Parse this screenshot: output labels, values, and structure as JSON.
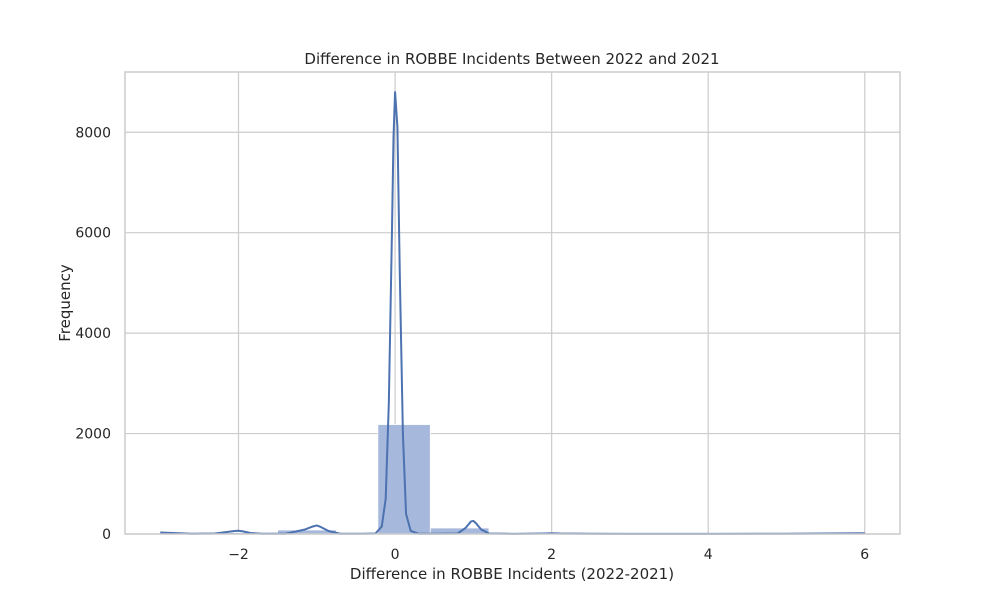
{
  "chart_data": {
    "type": "histogram",
    "title": "Difference in ROBBE Incidents Between 2022 and 2021",
    "xlabel": "Difference in ROBBE Incidents (2022-2021)",
    "ylabel": "Frequency",
    "xlim": [
      -3.45,
      6.45
    ],
    "ylim": [
      0,
      9200
    ],
    "xticks": [
      -2,
      0,
      2,
      4,
      6
    ],
    "xtick_labels": [
      "−2",
      "0",
      "2",
      "4",
      "6"
    ],
    "yticks": [
      0,
      2000,
      4000,
      6000,
      8000
    ],
    "ytick_labels": [
      "0",
      "2000",
      "4000",
      "6000",
      "8000"
    ],
    "grid": true,
    "bars": [
      {
        "x0": -3.0,
        "x1": -2.25,
        "value": 10
      },
      {
        "x0": -2.25,
        "x1": -1.5,
        "value": 30
      },
      {
        "x0": -1.5,
        "x1": -0.75,
        "value": 80
      },
      {
        "x0": -0.75,
        "x1": 0.0,
        "value": 0
      },
      {
        "x0": -0.22,
        "x1": 0.45,
        "value": 2180
      },
      {
        "x0": 0.45,
        "x1": 1.2,
        "value": 120
      },
      {
        "x0": 1.2,
        "x1": 1.95,
        "value": 15
      },
      {
        "x0": 1.95,
        "x1": 2.7,
        "value": 8
      },
      {
        "x0": 2.7,
        "x1": 3.45,
        "value": 5
      },
      {
        "x0": 3.45,
        "x1": 4.2,
        "value": 2
      },
      {
        "x0": 4.2,
        "x1": 4.95,
        "value": 1
      },
      {
        "x0": 4.95,
        "x1": 5.7,
        "value": 1
      },
      {
        "x0": 5.7,
        "x1": 6.0,
        "value": 1
      }
    ],
    "kde": {
      "x": [
        -3.0,
        -2.6,
        -2.3,
        -2.15,
        -2.05,
        -2.0,
        -1.95,
        -1.85,
        -1.7,
        -1.4,
        -1.15,
        -1.05,
        -1.0,
        -0.95,
        -0.85,
        -0.7,
        -0.4,
        -0.25,
        -0.17,
        -0.12,
        -0.08,
        -0.04,
        -0.02,
        0.0,
        0.03,
        0.06,
        0.1,
        0.14,
        0.2,
        0.3,
        0.5,
        0.8,
        0.9,
        0.97,
        1.0,
        1.03,
        1.1,
        1.2,
        1.5,
        1.9,
        2.0,
        2.1,
        2.5,
        3.0,
        3.5,
        4.0,
        5.0,
        5.5,
        6.0
      ],
      "y": [
        30,
        5,
        10,
        40,
        60,
        65,
        55,
        20,
        5,
        5,
        90,
        150,
        170,
        140,
        60,
        5,
        5,
        10,
        150,
        700,
        2600,
        6000,
        7900,
        8800,
        8100,
        5200,
        2000,
        400,
        60,
        5,
        5,
        10,
        120,
        250,
        260,
        220,
        90,
        10,
        3,
        10,
        15,
        10,
        5,
        3,
        2,
        2,
        5,
        10,
        15
      ]
    },
    "colors": {
      "bar_fill": "#a6b8dc",
      "bar_edge": "#ffffff",
      "kde_line": "#4c72b0",
      "grid": "#cccccc",
      "frame": "#cccccc"
    }
  }
}
